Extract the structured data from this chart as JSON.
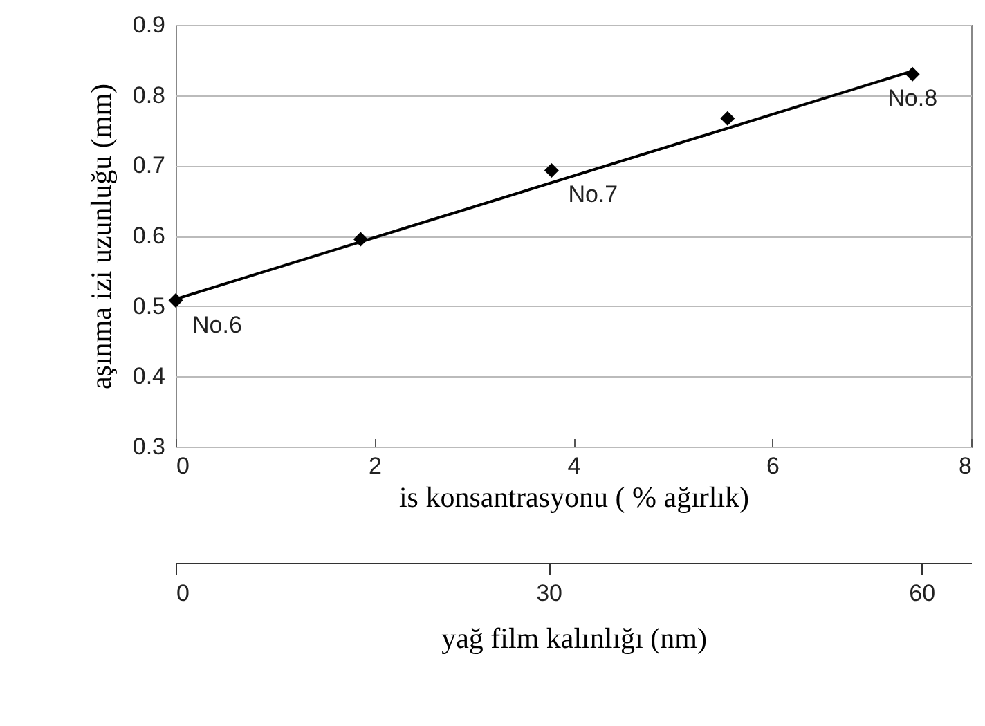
{
  "chart_data": {
    "type": "scatter",
    "xlabel": "is konsantrasyonu ( % ağırlık)",
    "ylabel": "aşınma izi uzunluğu (mm)",
    "x2label": "yağ film kalınlığı (nm)",
    "xlim": [
      0,
      8
    ],
    "xticks": [
      0,
      2,
      4,
      6,
      8
    ],
    "ylim": [
      0.3,
      0.9
    ],
    "yticks": [
      0.3,
      0.4,
      0.5,
      0.6,
      0.7,
      0.8,
      0.9
    ],
    "x2lim": [
      0,
      64
    ],
    "x2ticks": [
      0,
      30,
      60
    ],
    "grid": "y",
    "series": [
      {
        "marker": "diamond",
        "color": "#000000",
        "x": [
          0,
          1.86,
          3.78,
          5.55,
          7.41
        ],
        "values": [
          0.508,
          0.595,
          0.693,
          0.767,
          0.83
        ]
      },
      {
        "type": "line",
        "marker": "none",
        "color": "#000000",
        "x": [
          0,
          7.4
        ],
        "values": [
          0.51,
          0.834
        ]
      }
    ],
    "annotations": [
      {
        "text": "No.6",
        "x": 0,
        "y": 0.508
      },
      {
        "text": "No.7",
        "x": 3.78,
        "y": 0.693
      },
      {
        "text": "No.8",
        "x": 7.41,
        "y": 0.83
      }
    ]
  }
}
